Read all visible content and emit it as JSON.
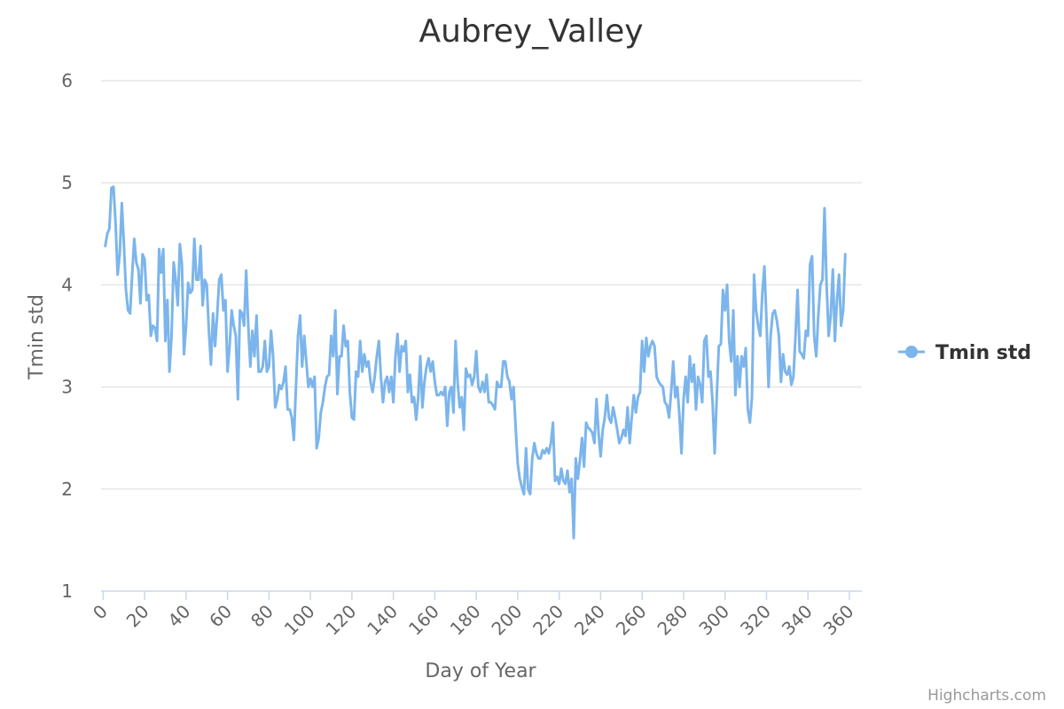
{
  "chart_data": {
    "type": "line",
    "title": "Aubrey_Valley",
    "xlabel": "Day of Year",
    "ylabel": "Tmin std",
    "xlim": [
      -1,
      366
    ],
    "ylim": [
      1,
      6
    ],
    "xticks": [
      0,
      20,
      40,
      60,
      80,
      100,
      120,
      140,
      160,
      180,
      200,
      220,
      240,
      260,
      280,
      300,
      320,
      340,
      360
    ],
    "yticks": [
      1,
      2,
      3,
      4,
      5,
      6
    ],
    "grid": true,
    "legend_position": "right",
    "series": [
      {
        "name": "Tmin std",
        "color": "#7cb5ec",
        "x_start": 1,
        "values": [
          4.38,
          4.5,
          4.55,
          4.95,
          4.96,
          4.6,
          4.1,
          4.3,
          4.8,
          4.4,
          3.95,
          3.75,
          3.72,
          4.1,
          4.45,
          4.22,
          4.15,
          3.82,
          4.3,
          4.25,
          3.85,
          3.9,
          3.5,
          3.6,
          3.58,
          3.45,
          4.35,
          4.12,
          4.35,
          3.45,
          3.85,
          3.15,
          3.5,
          4.22,
          4.05,
          3.8,
          4.4,
          4.2,
          3.32,
          3.6,
          4.02,
          3.92,
          3.95,
          4.45,
          4.05,
          4.05,
          4.38,
          3.8,
          4.05,
          4.0,
          3.55,
          3.22,
          3.72,
          3.4,
          3.7,
          4.05,
          4.1,
          3.75,
          3.85,
          3.15,
          3.4,
          3.75,
          3.6,
          3.5,
          2.88,
          3.75,
          3.72,
          3.6,
          4.14,
          3.6,
          3.2,
          3.55,
          3.3,
          3.7,
          3.15,
          3.15,
          3.2,
          3.45,
          3.15,
          3.2,
          3.55,
          3.3,
          2.8,
          2.88,
          3.02,
          2.98,
          3.05,
          3.2,
          2.78,
          2.78,
          2.7,
          2.48,
          3.0,
          3.5,
          3.7,
          3.2,
          3.5,
          3.25,
          3.0,
          3.08,
          3.0,
          3.1,
          2.4,
          2.5,
          2.75,
          2.85,
          3.0,
          3.1,
          3.12,
          3.5,
          3.3,
          3.75,
          2.93,
          3.3,
          3.3,
          3.6,
          3.4,
          3.45,
          2.95,
          2.7,
          2.68,
          3.15,
          3.1,
          3.45,
          3.15,
          3.32,
          3.2,
          3.25,
          3.05,
          2.95,
          3.1,
          3.3,
          3.45,
          3.1,
          2.85,
          3.05,
          3.1,
          2.95,
          3.1,
          2.85,
          3.3,
          3.52,
          3.15,
          3.4,
          3.35,
          3.45,
          2.95,
          3.12,
          2.85,
          2.9,
          2.68,
          2.9,
          3.3,
          2.8,
          3.05,
          3.2,
          3.28,
          3.15,
          3.25,
          3.05,
          2.92,
          2.92,
          2.95,
          2.92,
          3.0,
          2.62,
          2.95,
          3.0,
          2.75,
          3.45,
          3.05,
          2.8,
          2.9,
          2.58,
          3.18,
          3.1,
          3.12,
          3.02,
          3.1,
          3.35,
          3.0,
          2.95,
          3.05,
          2.95,
          3.12,
          2.85,
          2.85,
          2.82,
          2.78,
          3.05,
          3.0,
          3.0,
          3.25,
          3.25,
          3.1,
          3.05,
          2.88,
          3.0,
          2.6,
          2.25,
          2.1,
          2.02,
          1.95,
          2.4,
          2.0,
          1.95,
          2.3,
          2.45,
          2.35,
          2.3,
          2.3,
          2.38,
          2.35,
          2.4,
          2.35,
          2.45,
          2.65,
          2.08,
          2.12,
          2.05,
          2.2,
          2.08,
          2.05,
          2.18,
          1.97,
          2.1,
          1.52,
          2.3,
          2.1,
          2.28,
          2.5,
          2.22,
          2.65,
          2.6,
          2.58,
          2.55,
          2.45,
          2.88,
          2.55,
          2.32,
          2.58,
          2.7,
          2.92,
          2.7,
          2.65,
          2.8,
          2.7,
          2.58,
          2.45,
          2.5,
          2.58,
          2.52,
          2.8,
          2.45,
          2.7,
          2.92,
          2.75,
          2.9,
          2.95,
          3.45,
          3.15,
          3.48,
          3.3,
          3.4,
          3.45,
          3.4,
          3.1,
          3.05,
          3.02,
          3.0,
          2.85,
          2.82,
          2.7,
          2.95,
          3.25,
          2.9,
          3.0,
          2.72,
          2.35,
          2.88,
          3.1,
          2.85,
          3.3,
          3.05,
          3.22,
          2.78,
          3.1,
          3.02,
          2.85,
          3.45,
          3.5,
          3.1,
          3.15,
          2.85,
          2.35,
          2.9,
          3.4,
          3.42,
          3.95,
          3.75,
          4.0,
          3.45,
          3.25,
          3.75,
          2.92,
          3.3,
          3.0,
          3.3,
          3.2,
          3.38,
          2.78,
          2.65,
          2.9,
          4.1,
          3.75,
          3.6,
          3.5,
          3.92,
          4.18,
          3.65,
          3.0,
          3.5,
          3.72,
          3.75,
          3.65,
          3.5,
          3.05,
          3.32,
          3.15,
          3.12,
          3.2,
          3.02,
          3.1,
          3.5,
          3.95,
          3.35,
          3.32,
          3.28,
          3.55,
          3.5,
          4.2,
          4.28,
          3.5,
          3.3,
          3.7,
          4.0,
          4.05,
          4.75,
          4.0,
          3.5,
          3.7,
          4.15,
          3.45,
          3.85,
          4.1,
          3.6,
          3.75,
          4.3
        ]
      }
    ]
  },
  "credits": "Highcharts.com"
}
